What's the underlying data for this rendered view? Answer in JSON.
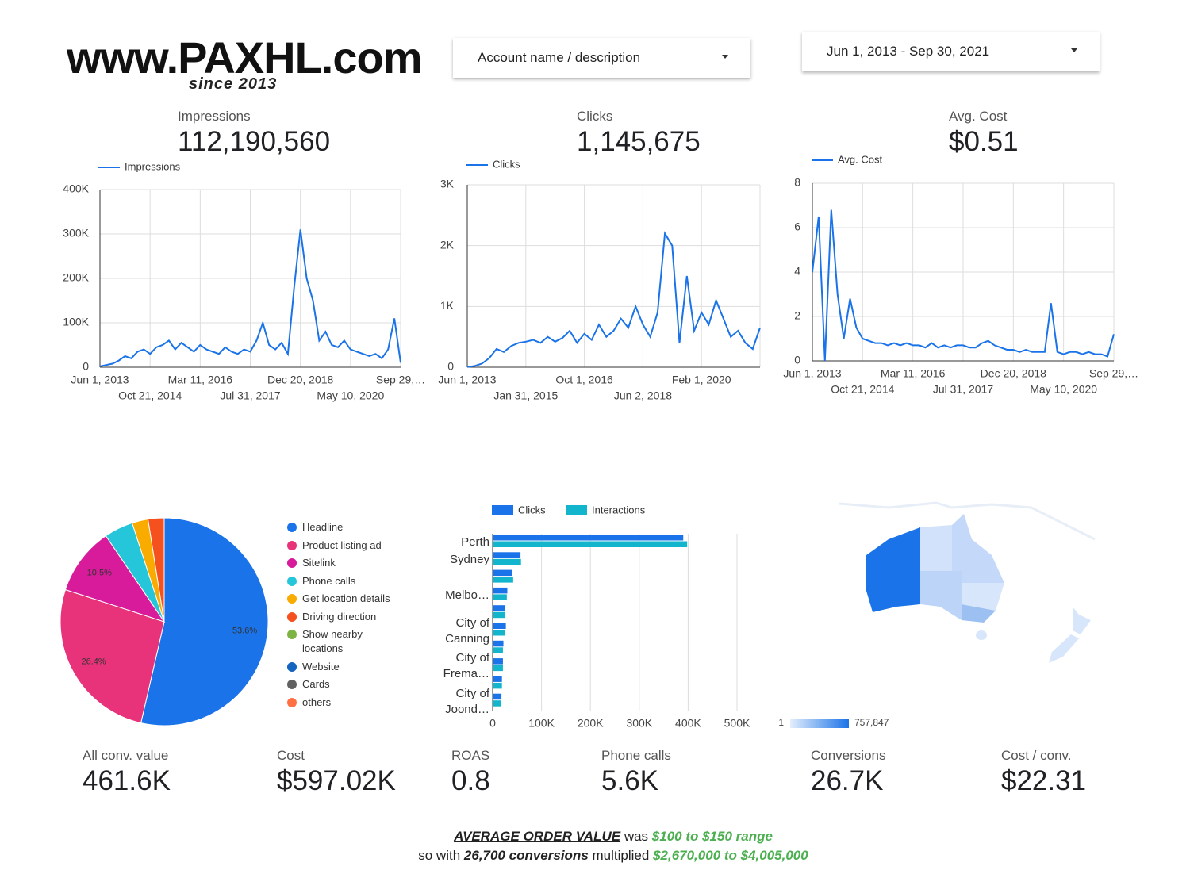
{
  "header": {
    "logo": "www.PAXHL.com",
    "tagline": "since 2013",
    "account_filter": "Account name / description",
    "date_range": "Jun 1, 2013 - Sep 30, 2021"
  },
  "top_scorecards": [
    {
      "label": "Impressions",
      "value": "112,190,560"
    },
    {
      "label": "Clicks",
      "value": "1,145,675"
    },
    {
      "label": "Avg. Cost",
      "value": "$0.51"
    }
  ],
  "chart_data": [
    {
      "type": "line",
      "categories": [
        "Jun 1, 2013",
        null,
        null,
        null,
        null,
        null,
        null,
        null,
        "Oct 21, 2014",
        null,
        null,
        null,
        null,
        null,
        null,
        null,
        "Mar 11, 2016",
        null,
        null,
        null,
        null,
        null,
        null,
        null,
        "Jul 31, 2017",
        null,
        null,
        null,
        null,
        null,
        null,
        null,
        "Dec 20, 2018",
        null,
        null,
        null,
        null,
        null,
        null,
        null,
        "May 10, 2020",
        null,
        null,
        null,
        null,
        null,
        null,
        null,
        "Sep 29,…"
      ],
      "series": [
        {
          "name": "Impressions",
          "color": "#1a73e8",
          "values": [
            2000,
            5000,
            8000,
            15000,
            25000,
            20000,
            35000,
            40000,
            30000,
            45000,
            50000,
            60000,
            40000,
            55000,
            45000,
            35000,
            50000,
            40000,
            35000,
            30000,
            45000,
            35000,
            30000,
            40000,
            35000,
            60000,
            100000,
            50000,
            40000,
            55000,
            30000,
            180000,
            310000,
            200000,
            150000,
            60000,
            80000,
            50000,
            45000,
            60000,
            40000,
            35000,
            30000,
            25000,
            30000,
            20000,
            40000,
            110000,
            10000
          ]
        }
      ],
      "ylim": [
        0,
        400000
      ],
      "yticks": [
        0,
        {
          "value": 100000,
          "label": "100K"
        },
        {
          "value": 200000,
          "label": "200K"
        },
        {
          "value": 300000,
          "label": "300K"
        },
        {
          "value": 400000,
          "label": "400K"
        }
      ],
      "grid": true,
      "legend": "top-left"
    },
    {
      "type": "line",
      "categories": [
        "Jun 1, 2013",
        null,
        null,
        null,
        null,
        null,
        null,
        null,
        "Jan 31, 2015",
        null,
        null,
        null,
        null,
        null,
        null,
        null,
        "Oct 1, 2016",
        null,
        null,
        null,
        null,
        null,
        null,
        null,
        "Jun 2, 2018",
        null,
        null,
        null,
        null,
        null,
        null,
        null,
        "Feb 1, 2020",
        null,
        null,
        null,
        null,
        null,
        null,
        null,
        null
      ],
      "series": [
        {
          "name": "Clicks",
          "color": "#1a73e8",
          "values": [
            5,
            20,
            60,
            150,
            300,
            250,
            350,
            400,
            420,
            450,
            400,
            500,
            420,
            480,
            600,
            400,
            550,
            450,
            700,
            500,
            600,
            800,
            650,
            1000,
            700,
            500,
            900,
            2200,
            2000,
            400,
            1500,
            600,
            900,
            700,
            1100,
            800,
            500,
            600,
            400,
            300,
            650
          ]
        }
      ],
      "ylim": [
        0,
        3000
      ],
      "yticks": [
        0,
        {
          "value": 1000,
          "label": "1K"
        },
        {
          "value": 2000,
          "label": "2K"
        },
        {
          "value": 3000,
          "label": "3K"
        }
      ],
      "grid": true,
      "legend": "top-left"
    },
    {
      "type": "line",
      "categories": [
        "Jun 1, 2013",
        null,
        null,
        null,
        null,
        null,
        null,
        null,
        "Oct 21, 2014",
        null,
        null,
        null,
        null,
        null,
        null,
        null,
        "Mar 11, 2016",
        null,
        null,
        null,
        null,
        null,
        null,
        null,
        "Jul 31, 2017",
        null,
        null,
        null,
        null,
        null,
        null,
        null,
        "Dec 20, 2018",
        null,
        null,
        null,
        null,
        null,
        null,
        null,
        "May 10, 2020",
        null,
        null,
        null,
        null,
        null,
        null,
        null,
        "Sep 29,…"
      ],
      "series": [
        {
          "name": "Avg. Cost",
          "color": "#1a73e8",
          "values": [
            4,
            6.5,
            0,
            6.8,
            3,
            1,
            2.8,
            1.5,
            1.0,
            0.9,
            0.8,
            0.8,
            0.7,
            0.8,
            0.7,
            0.8,
            0.7,
            0.7,
            0.6,
            0.8,
            0.6,
            0.7,
            0.6,
            0.7,
            0.7,
            0.6,
            0.6,
            0.8,
            0.9,
            0.7,
            0.6,
            0.5,
            0.5,
            0.4,
            0.5,
            0.4,
            0.4,
            0.4,
            2.6,
            0.4,
            0.3,
            0.4,
            0.4,
            0.3,
            0.4,
            0.3,
            0.3,
            0.2,
            1.2
          ]
        }
      ],
      "ylim": [
        0,
        8
      ],
      "yticks": [
        0,
        2,
        4,
        6,
        8
      ],
      "grid": true,
      "legend": "top-left"
    },
    {
      "type": "pie",
      "categories": [
        "Headline",
        "Product listing ad",
        "Sitelink",
        "Phone calls",
        "Get location details",
        "Driving direction",
        "Show nearby locations",
        "Website",
        "Cards",
        "others"
      ],
      "values": [
        53.6,
        26.4,
        10.5,
        4.5,
        2.5,
        2.5,
        0,
        0,
        0,
        0
      ],
      "value_labels": [
        "53.6%",
        "26.4%",
        "10.5%",
        null,
        null,
        null,
        null,
        null,
        null,
        null
      ],
      "colors": [
        "#1a73e8",
        "#e8337a",
        "#d81b9a",
        "#26c6da",
        "#f9ab00",
        "#f4511e",
        "#7cb342",
        "#1565c0",
        "#616161",
        "#ff7043"
      ],
      "legend": "right"
    },
    {
      "type": "hbar",
      "categories": [
        "Perth",
        "Sydney",
        null,
        "Melbo…",
        null,
        "City of Canning",
        null,
        "City of Frema…",
        null,
        "City of Joond…"
      ],
      "series": [
        {
          "name": "Clicks",
          "color": "#1a73e8",
          "values": [
            390000,
            57000,
            40000,
            30000,
            26000,
            27000,
            22000,
            21000,
            19000,
            18000
          ]
        },
        {
          "name": "Interactions",
          "color": "#12b5cb",
          "values": [
            398000,
            58000,
            42000,
            29000,
            26000,
            26000,
            21000,
            21000,
            19000,
            17000
          ]
        }
      ],
      "xlim": [
        0,
        500000
      ],
      "xticks": [
        0,
        {
          "value": 100000,
          "label": "100K"
        },
        {
          "value": 200000,
          "label": "200K"
        },
        {
          "value": 300000,
          "label": "300K"
        },
        {
          "value": 400000,
          "label": "400K"
        },
        {
          "value": 500000,
          "label": "500K"
        }
      ],
      "grid": true,
      "legend": "top"
    },
    {
      "type": "geo",
      "zlim": [
        1,
        757847
      ],
      "zticks": [
        1,
        {
          "value": 757847,
          "label": "757,847"
        }
      ],
      "colors": [
        "#e3eefc",
        "#1a73e8"
      ]
    }
  ],
  "bottom_scorecards": [
    {
      "label": "All conv. value",
      "value": "461.6K"
    },
    {
      "label": "Cost",
      "value": "$597.02K"
    },
    {
      "label": "ROAS",
      "value": "0.8"
    },
    {
      "label": "Phone calls",
      "value": "5.6K"
    },
    {
      "label": "Conversions",
      "value": "26.7K"
    },
    {
      "label": "Cost / conv.",
      "value": "$22.31"
    }
  ],
  "note": {
    "line1": {
      "topic": "AVERAGE ORDER VALUE",
      "verb": "was",
      "range": "$100 to $150 range"
    },
    "line2": {
      "lead": "so with",
      "conversions": "26,700 conversions",
      "verb": "multiplied",
      "total": "$2,670,000 to $4,005,000"
    }
  }
}
